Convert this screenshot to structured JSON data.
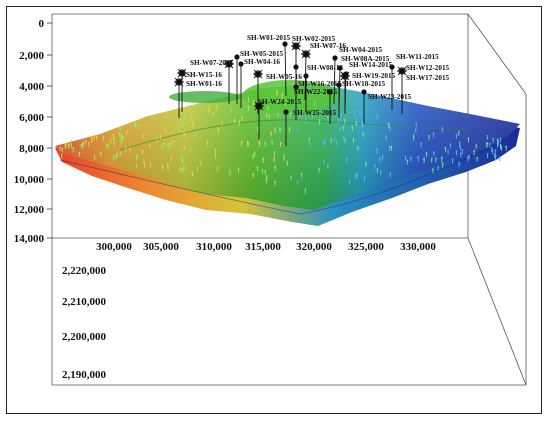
{
  "depth_axis": {
    "labels": [
      "0",
      "2,000",
      "4,000",
      "6,000",
      "8,000",
      "10,000",
      "12,000",
      "14,000"
    ]
  },
  "easting_axis": {
    "labels": [
      "300,000",
      "305,000",
      "310,000",
      "315,000",
      "320,000",
      "325,000",
      "330,000"
    ]
  },
  "northing_axis": {
    "labels": [
      "2,220,000",
      "2,210,000",
      "2,200,000",
      "2,190,000"
    ]
  },
  "wells": [
    {
      "name": "SH-W01-2015",
      "type": "vertical"
    },
    {
      "name": "SH-W02-2015",
      "type": "vertical"
    },
    {
      "name": "SH-W07-16",
      "type": "injector"
    },
    {
      "name": "SH-W04-2015",
      "type": "vertical"
    },
    {
      "name": "SH-W11-2015",
      "type": "vertical"
    },
    {
      "name": "SH-W05-2015",
      "type": "vertical"
    },
    {
      "name": "SH-W07-2015",
      "type": "injector"
    },
    {
      "name": "SH-W04-16",
      "type": "vertical"
    },
    {
      "name": "SH-W12-2015",
      "type": "vertical"
    },
    {
      "name": "SH-W08A-2015",
      "type": "vertical"
    },
    {
      "name": "SH-W14-2015",
      "type": "vertical"
    },
    {
      "name": "SH-W15-16",
      "type": "injector"
    },
    {
      "name": "SH-W08-16",
      "type": "vertical"
    },
    {
      "name": "SH-W19-2015",
      "type": "vertical"
    },
    {
      "name": "SH-W17-2015",
      "type": "vertical"
    },
    {
      "name": "SH-W01-16",
      "type": "injector"
    },
    {
      "name": "SH-W05-16",
      "type": "vertical"
    },
    {
      "name": "SH-W18-2015",
      "type": "vertical"
    },
    {
      "name": "SH-W16-2015",
      "type": "vertical"
    },
    {
      "name": "SH-W22-2015",
      "type": "vertical"
    },
    {
      "name": "SH-W23-2015",
      "type": "vertical"
    },
    {
      "name": "SH-W24-2015",
      "type": "injector"
    },
    {
      "name": "SH-W25-2015",
      "type": "vertical"
    }
  ],
  "colors": {
    "high": "#e8502a",
    "mid": "#4cc22e",
    "low": "#1f2fb8",
    "well": "#111111",
    "frame": "#222222"
  }
}
